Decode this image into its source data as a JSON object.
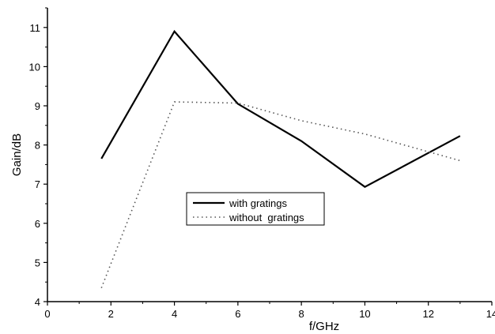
{
  "chart_data": {
    "type": "line",
    "title": "",
    "xlabel": "f/GHz",
    "ylabel": "Gain/dB",
    "xlim": [
      0,
      14
    ],
    "ylim": [
      4,
      11.5
    ],
    "xticks": [
      0,
      2,
      4,
      6,
      8,
      10,
      12,
      14
    ],
    "xtick_labels": [
      "0",
      "2",
      "4",
      "6",
      "8",
      "10",
      "12",
      "14"
    ],
    "yticks": [
      4,
      5,
      6,
      7,
      8,
      9,
      10,
      11
    ],
    "ytick_labels": [
      "4",
      "5",
      "6",
      "7",
      "8",
      "9",
      "10",
      "11"
    ],
    "grid": false,
    "legend_position": "center",
    "series": [
      {
        "name": "with gratings",
        "style": "solid",
        "color": "#000000",
        "x": [
          1.7,
          4,
          6,
          8,
          10,
          13
        ],
        "y": [
          7.65,
          10.9,
          9.05,
          8.1,
          6.93,
          8.23
        ]
      },
      {
        "name": "without  gratings",
        "style": "dotted",
        "color": "#555555",
        "x": [
          1.7,
          4,
          6,
          8,
          10,
          13
        ],
        "y": [
          4.35,
          9.1,
          9.07,
          8.62,
          8.28,
          7.6
        ]
      }
    ]
  }
}
